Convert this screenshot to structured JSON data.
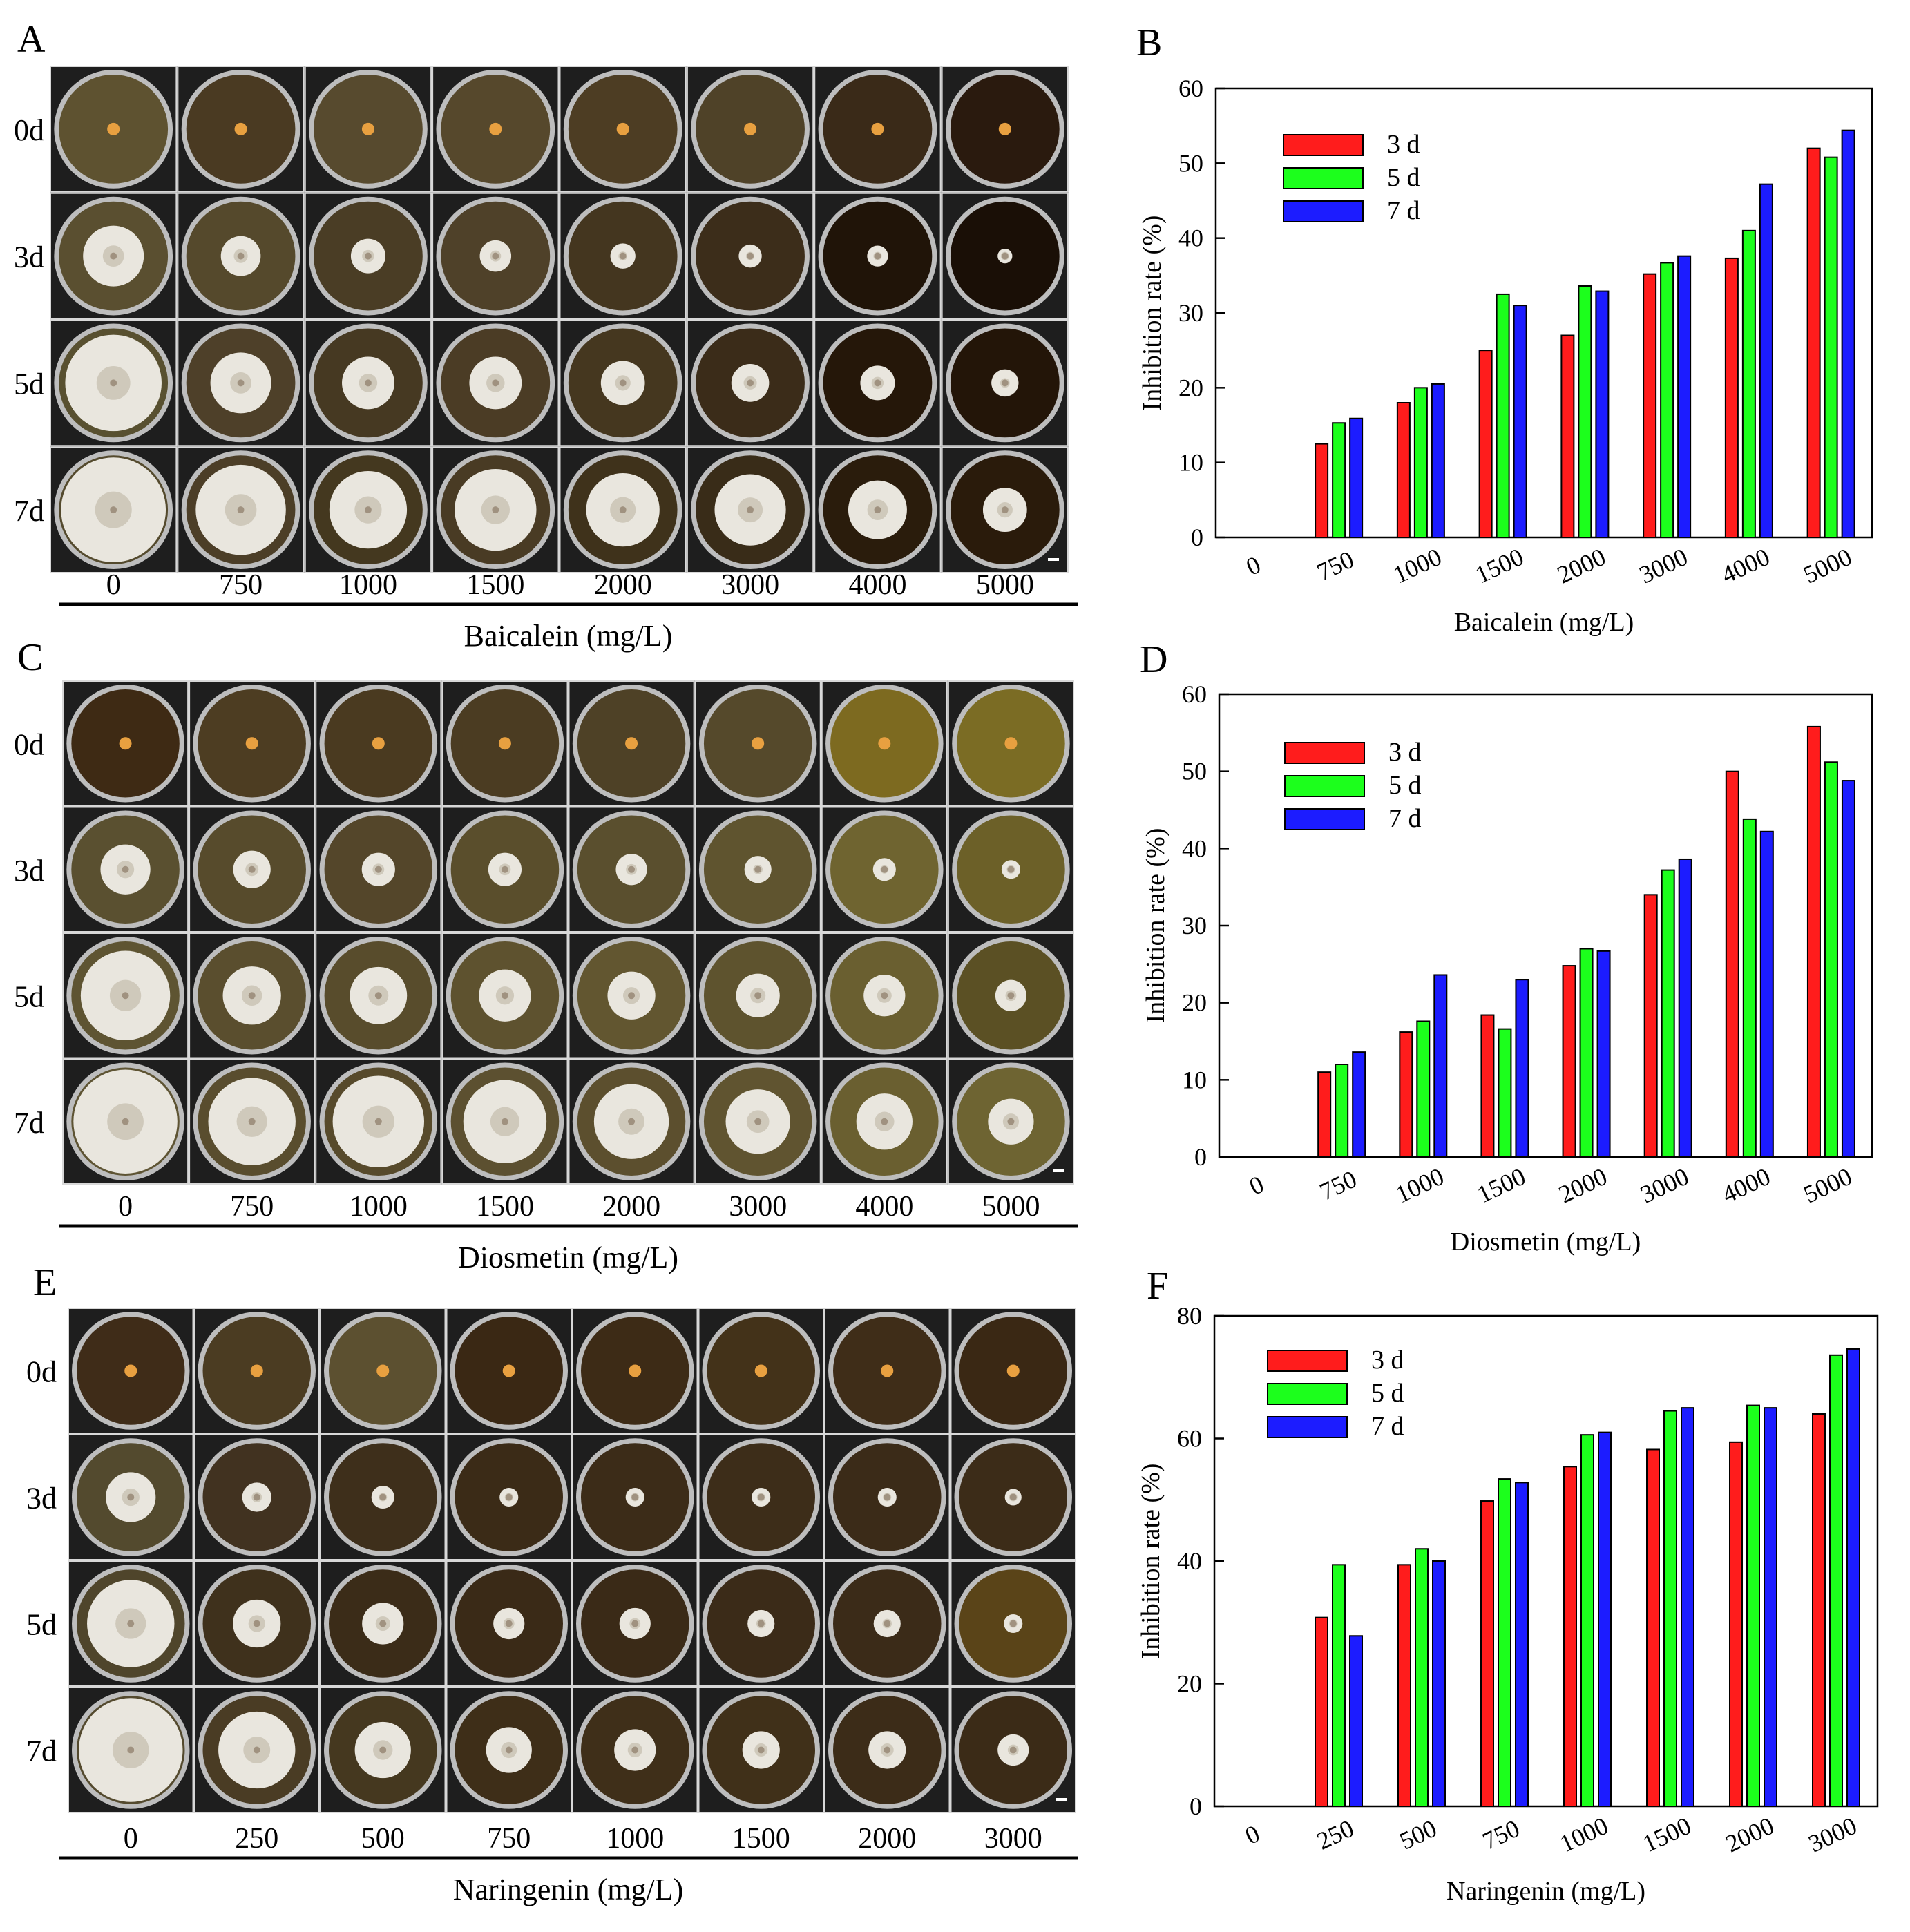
{
  "colors": {
    "day3": "#ff1c1c",
    "day5": "#1cff1c",
    "day7": "#1c1cff",
    "scale_bar": "#ffffff"
  },
  "panels": {
    "A": {
      "letter": "A",
      "day_labels": [
        "0d",
        "3d",
        "5d",
        "7d"
      ],
      "concentrations": [
        "0",
        "750",
        "1000",
        "1500",
        "2000",
        "3000",
        "4000",
        "5000"
      ],
      "xlabel": "Baicalein (mg/L)"
    },
    "C": {
      "letter": "C",
      "day_labels": [
        "0d",
        "3d",
        "5d",
        "7d"
      ],
      "concentrations": [
        "0",
        "750",
        "1000",
        "1500",
        "2000",
        "3000",
        "4000",
        "5000"
      ],
      "xlabel": "Diosmetin (mg/L)"
    },
    "E": {
      "letter": "E",
      "day_labels": [
        "0d",
        "3d",
        "5d",
        "7d"
      ],
      "concentrations": [
        "0",
        "250",
        "500",
        "750",
        "1000",
        "1500",
        "2000",
        "3000"
      ],
      "xlabel": "Naringenin (mg/L)"
    }
  },
  "chart_data": [
    {
      "panel": "B",
      "type": "bar",
      "categories": [
        "0",
        "750",
        "1000",
        "1500",
        "2000",
        "3000",
        "4000",
        "5000"
      ],
      "series": [
        {
          "name": "3 d",
          "values": [
            0,
            12.5,
            18,
            25,
            27,
            35.2,
            37.3,
            52
          ]
        },
        {
          "name": "5 d",
          "values": [
            0,
            15.3,
            20,
            32.5,
            33.6,
            36.7,
            41,
            50.8
          ]
        },
        {
          "name": "7 d",
          "values": [
            0,
            15.9,
            20.5,
            31,
            32.9,
            37.6,
            47.2,
            54.4
          ]
        }
      ],
      "ylabel": "Inhibition rate (%)",
      "xlabel": "Baicalein (mg/L)",
      "ylim": [
        0,
        60
      ],
      "yticks": [
        0,
        10,
        20,
        30,
        40,
        50,
        60
      ],
      "legend": "top-left"
    },
    {
      "panel": "D",
      "type": "bar",
      "categories": [
        "0",
        "750",
        "1000",
        "1500",
        "2000",
        "3000",
        "4000",
        "5000"
      ],
      "series": [
        {
          "name": "3 d",
          "values": [
            0,
            11,
            16.2,
            18.4,
            24.8,
            34,
            50,
            55.8
          ]
        },
        {
          "name": "5 d",
          "values": [
            0,
            12,
            17.6,
            16.6,
            27,
            37.2,
            43.8,
            51.2
          ]
        },
        {
          "name": "7 d",
          "values": [
            0,
            13.6,
            23.6,
            23,
            26.7,
            38.6,
            42.2,
            48.8
          ]
        }
      ],
      "ylabel": "Inhibition rate (%)",
      "xlabel": "Diosmetin (mg/L)",
      "ylim": [
        0,
        60
      ],
      "yticks": [
        0,
        10,
        20,
        30,
        40,
        50,
        60
      ],
      "legend": "top-left"
    },
    {
      "panel": "F",
      "type": "bar",
      "categories": [
        "0",
        "250",
        "500",
        "750",
        "1000",
        "1500",
        "2000",
        "3000"
      ],
      "series": [
        {
          "name": "3 d",
          "values": [
            0,
            30.8,
            39.4,
            49.8,
            55.4,
            58.2,
            59.4,
            64
          ]
        },
        {
          "name": "5 d",
          "values": [
            0,
            39.4,
            42,
            53.4,
            60.6,
            64.5,
            65.4,
            73.6
          ]
        },
        {
          "name": "7 d",
          "values": [
            0,
            27.8,
            40,
            52.8,
            61,
            65,
            65,
            74.6
          ]
        }
      ],
      "ylabel": "Inhibition rate (%)",
      "xlabel": "Naringenin (mg/L)",
      "ylim": [
        0,
        80
      ],
      "yticks": [
        0,
        20,
        40,
        60,
        80
      ],
      "legend": "top-left"
    }
  ]
}
